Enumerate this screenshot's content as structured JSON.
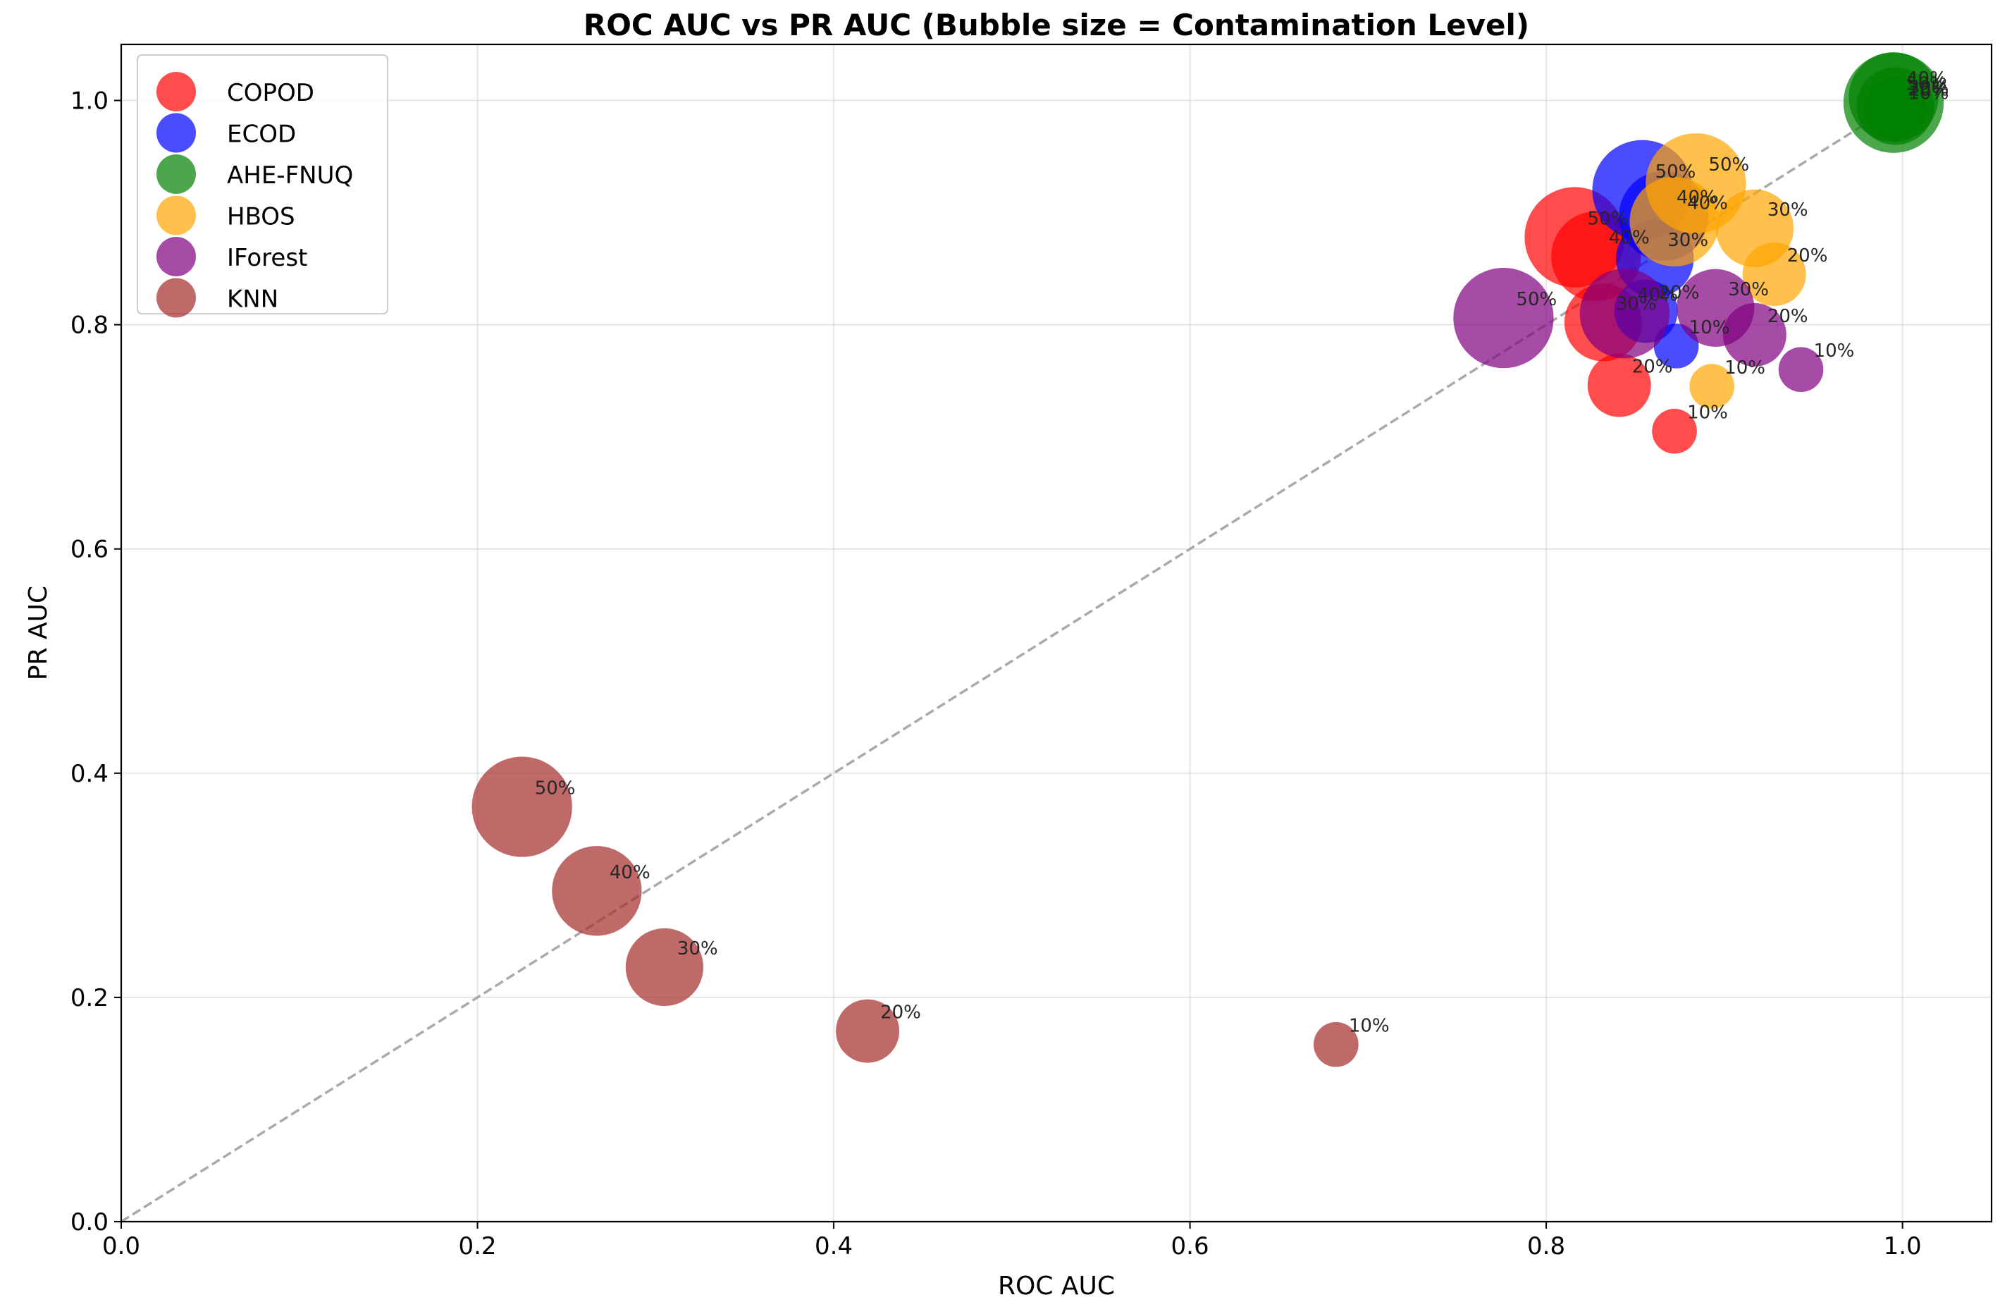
{
  "chart_data": {
    "type": "scatter",
    "title": "ROC AUC vs PR AUC (Bubble size = Contamination Level)",
    "xlabel": "ROC AUC",
    "ylabel": "PR AUC",
    "xlim": [
      0.0,
      1.05
    ],
    "ylim": [
      0.0,
      1.05
    ],
    "xticks": [
      0.0,
      0.2,
      0.4,
      0.6,
      0.8,
      1.0
    ],
    "yticks": [
      0.0,
      0.2,
      0.4,
      0.6,
      0.8,
      1.0
    ],
    "xtick_labels": [
      "0.0",
      "0.2",
      "0.4",
      "0.6",
      "0.8",
      "1.0"
    ],
    "ytick_labels": [
      "0.0",
      "0.2",
      "0.4",
      "0.6",
      "0.8",
      "1.0"
    ],
    "grid": true,
    "legend_position": "top-left",
    "reference_line": {
      "type": "diagonal",
      "x": [
        0,
        1
      ],
      "y": [
        0,
        1
      ],
      "style": "dashed",
      "color": "#aaaaaa"
    },
    "series": [
      {
        "name": "COPOD",
        "color": "#ff0000",
        "points": [
          {
            "x": 0.872,
            "y": 0.705,
            "label": "10%",
            "size": 10
          },
          {
            "x": 0.841,
            "y": 0.746,
            "label": "20%",
            "size": 20
          },
          {
            "x": 0.832,
            "y": 0.802,
            "label": "30%",
            "size": 30
          },
          {
            "x": 0.828,
            "y": 0.861,
            "label": "40%",
            "size": 40
          },
          {
            "x": 0.816,
            "y": 0.878,
            "label": "50%",
            "size": 50
          }
        ]
      },
      {
        "name": "ECOD",
        "color": "#0000ff",
        "points": [
          {
            "x": 0.873,
            "y": 0.781,
            "label": "10%",
            "size": 10
          },
          {
            "x": 0.856,
            "y": 0.812,
            "label": "20%",
            "size": 20
          },
          {
            "x": 0.861,
            "y": 0.859,
            "label": "30%",
            "size": 30
          },
          {
            "x": 0.866,
            "y": 0.897,
            "label": "40%",
            "size": 40
          },
          {
            "x": 0.854,
            "y": 0.92,
            "label": "50%",
            "size": 50
          }
        ]
      },
      {
        "name": "AHE-FNUQ",
        "color": "#008000",
        "points": [
          {
            "x": 0.996,
            "y": 0.99,
            "label": "10%",
            "size": 10
          },
          {
            "x": 0.996,
            "y": 0.993,
            "label": "20%",
            "size": 20
          },
          {
            "x": 0.996,
            "y": 0.995,
            "label": "30%",
            "size": 30
          },
          {
            "x": 0.995,
            "y": 1.003,
            "label": "40%",
            "size": 40
          },
          {
            "x": 0.995,
            "y": 0.998,
            "label": "50%",
            "size": 50
          }
        ]
      },
      {
        "name": "HBOS",
        "color": "#ffa500",
        "points": [
          {
            "x": 0.893,
            "y": 0.745,
            "label": "10%",
            "size": 10
          },
          {
            "x": 0.928,
            "y": 0.845,
            "label": "20%",
            "size": 20
          },
          {
            "x": 0.917,
            "y": 0.886,
            "label": "30%",
            "size": 30
          },
          {
            "x": 0.872,
            "y": 0.892,
            "label": "40%",
            "size": 40
          },
          {
            "x": 0.884,
            "y": 0.926,
            "label": "50%",
            "size": 50
          }
        ]
      },
      {
        "name": "IForest",
        "color": "#800080",
        "points": [
          {
            "x": 0.943,
            "y": 0.76,
            "label": "10%",
            "size": 10
          },
          {
            "x": 0.917,
            "y": 0.791,
            "label": "20%",
            "size": 20
          },
          {
            "x": 0.895,
            "y": 0.815,
            "label": "30%",
            "size": 30
          },
          {
            "x": 0.844,
            "y": 0.81,
            "label": "40%",
            "size": 40
          },
          {
            "x": 0.776,
            "y": 0.806,
            "label": "50%",
            "size": 50
          }
        ]
      },
      {
        "name": "KNN",
        "color": "#a52a2a",
        "points": [
          {
            "x": 0.682,
            "y": 0.158,
            "label": "10%",
            "size": 10
          },
          {
            "x": 0.419,
            "y": 0.17,
            "label": "20%",
            "size": 20
          },
          {
            "x": 0.305,
            "y": 0.227,
            "label": "30%",
            "size": 30
          },
          {
            "x": 0.267,
            "y": 0.295,
            "label": "40%",
            "size": 40
          },
          {
            "x": 0.225,
            "y": 0.37,
            "label": "50%",
            "size": 50
          }
        ]
      }
    ]
  }
}
